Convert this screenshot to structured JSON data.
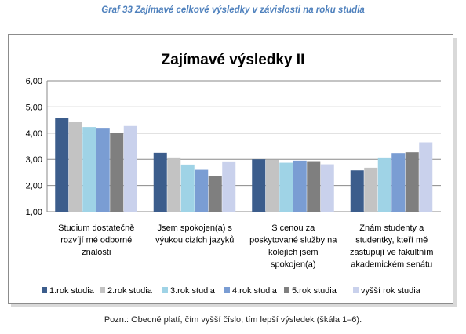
{
  "caption": "Graf 33 Zajímavé celkové výsledky v závislosti na roku studia",
  "note": "Pozn.: Obecně platí, čím vyšší číslo, tím lepší výsledek (škála 1–6).",
  "chart_data": {
    "type": "bar",
    "title": "Zajímavé výsledky II",
    "xlabel": "",
    "ylabel": "",
    "ylim": [
      1,
      6
    ],
    "yticks": [
      "1,00",
      "2,00",
      "3,00",
      "4,00",
      "5,00",
      "6,00"
    ],
    "grid": true,
    "legend": "bottom",
    "categories": [
      [
        "Studium dostatečně",
        "rozvíjí mé odborné",
        "znalosti"
      ],
      [
        "Jsem spokojen(a) s",
        "výukou cizích jazyků"
      ],
      [
        "S cenou za",
        "poskytované služby na",
        "kolejích jsem",
        "spokojen(a)"
      ],
      [
        "Znám studenty a",
        "studentky, kteří mě",
        "zastupují ve fakultním",
        "akademickém senátu"
      ]
    ],
    "series": [
      {
        "name": "1.rok studia",
        "color": "#3c5d8c",
        "values": [
          4.57,
          3.25,
          3.0,
          2.58
        ]
      },
      {
        "name": "2.rok studia",
        "color": "#c3c3c3",
        "values": [
          4.42,
          3.07,
          2.99,
          2.68
        ]
      },
      {
        "name": "3.rok studia",
        "color": "#9fd3e6",
        "values": [
          4.23,
          2.8,
          2.87,
          3.07
        ]
      },
      {
        "name": "4.rok studia",
        "color": "#7a9dd3",
        "values": [
          4.2,
          2.6,
          2.95,
          3.24
        ]
      },
      {
        "name": "5.rok studia",
        "color": "#7f7f7f",
        "values": [
          4.0,
          2.35,
          2.93,
          3.27
        ]
      },
      {
        "name": "vyšší rok studia",
        "color": "#c9d1ec",
        "values": [
          4.27,
          2.92,
          2.81,
          3.65
        ]
      }
    ]
  }
}
